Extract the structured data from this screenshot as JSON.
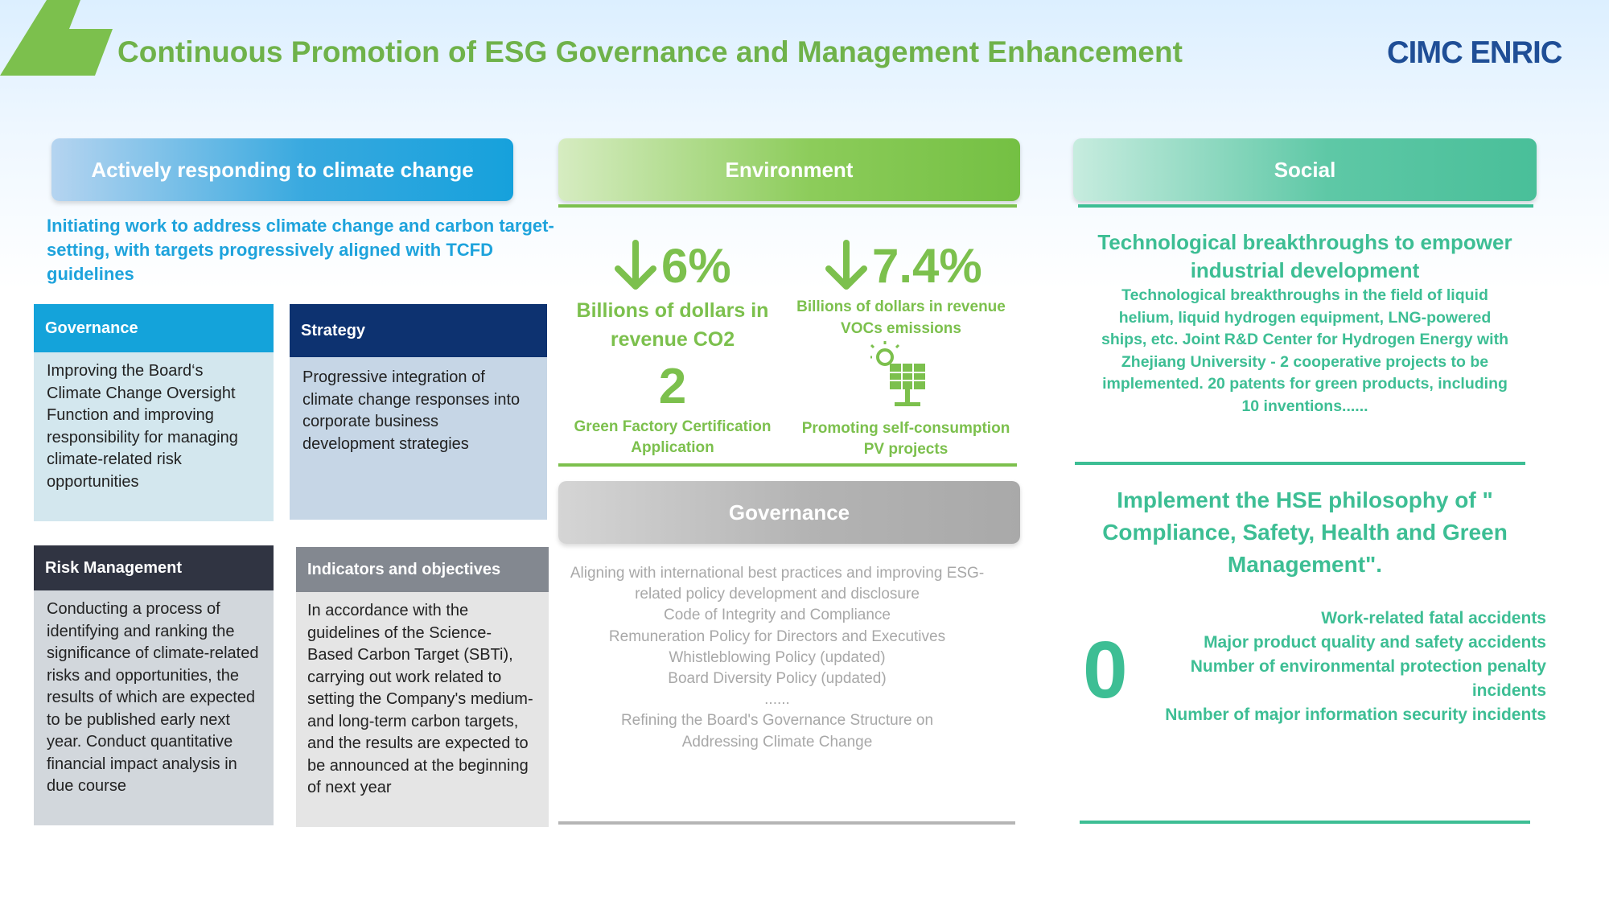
{
  "header": {
    "title": "Continuous Promotion of ESG Governance and Management Enhancement",
    "logo_text": "CIMC ENRIC"
  },
  "colors": {
    "title_green": "#6fb24a",
    "brand_blue": "#1f4e96",
    "climate_blue": "#16a1dc",
    "env_green": "#7cc04d",
    "social_teal": "#3dbe94",
    "gov_gray": "#a9a9a9"
  },
  "climate": {
    "header": "Actively responding to climate change",
    "intro": "Initiating work to address climate change and carbon target-setting, with targets progressively aligned with TCFD guidelines",
    "governance": {
      "title": "Governance",
      "body": "Improving the Board‘s Climate Change Oversight Function and improving responsibility for managing climate-related risk opportunities"
    },
    "strategy": {
      "title": "Strategy",
      "body": "Progressive integration of climate change responses into corporate business development strategies"
    },
    "risk": {
      "title": "Risk Management",
      "body": "Conducting a process of identifying and ranking the significance of climate-related risks and opportunities, the results of which are expected to be published early next year. Conduct quantitative financial impact analysis in due course"
    },
    "indicators": {
      "title": "Indicators and objectives",
      "body": "In accordance with the guidelines of the Science-Based Carbon Target (SBTi),  carrying out work related to setting the Company's medium- and long-term carbon targets, and the results are expected to be announced at the beginning of next year"
    }
  },
  "environment": {
    "header": "Environment",
    "arrow_icon": "down-arrow-icon",
    "metric1": {
      "value": "6%",
      "label": "Billions of dollars in revenue CO2"
    },
    "metric2": {
      "value": "7.4%",
      "label": "Billions of dollars in revenue VOCs emissions"
    },
    "metric3": {
      "value": "2",
      "label": "Green Factory Certification Application"
    },
    "metric4": {
      "icon": "solar-panel-icon",
      "label": "Promoting self-consumption PV projects"
    }
  },
  "governance": {
    "header": "Governance",
    "lines": [
      "Aligning with international best practices and improving ESG-related policy development and disclosure",
      "Code of Integrity and Compliance",
      "Remuneration Policy for Directors and Executives",
      "Whistleblowing Policy (updated)",
      "Board Diversity Policy (updated)",
      "......",
      "Refining the Board's Governance Structure on Addressing Climate Change"
    ]
  },
  "social": {
    "header": "Social",
    "tech_title": "Technological breakthroughs to empower industrial development",
    "tech_body": "Technological breakthroughs in the field of liquid helium, liquid hydrogen equipment, LNG-powered ships, etc. Joint R&D Center for Hydrogen Energy with Zhejiang University - 2 cooperative projects to be implemented. 20 patents for green products, including 10 inventions......",
    "hse_title": "Implement the HSE philosophy of \" Compliance, Safety, Health and Green Management\".",
    "zero_value": "0",
    "metrics": [
      "Work-related fatal accidents",
      "Major product quality and safety accidents",
      "Number of environmental protection penalty incidents",
      "Number of major information security incidents"
    ]
  }
}
